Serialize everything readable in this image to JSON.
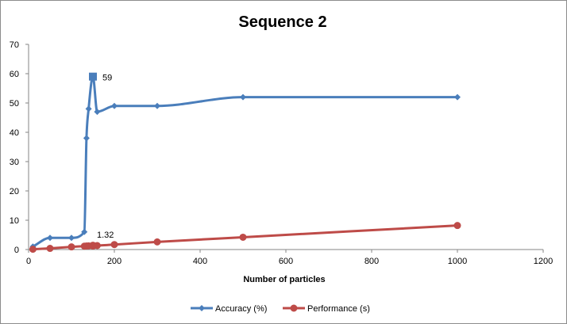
{
  "chart_data": {
    "type": "line",
    "title": "Sequence 2",
    "xlabel": "Number of particles",
    "ylabel": "",
    "xlim": [
      0,
      1200
    ],
    "ylim": [
      0,
      70
    ],
    "xticks": [
      0,
      200,
      400,
      600,
      800,
      1000,
      1200
    ],
    "yticks": [
      0,
      10,
      20,
      30,
      40,
      50,
      60,
      70
    ],
    "legend_position": "bottom",
    "smooth_lines": true,
    "grid": false,
    "series": [
      {
        "name": "Accuracy (%)",
        "color": "#4a7ebb",
        "marker": "diamond",
        "x": [
          10,
          50,
          100,
          130,
          135,
          140,
          150,
          160,
          200,
          300,
          500,
          1000
        ],
        "y": [
          1,
          4,
          4,
          6,
          38,
          48,
          59,
          47,
          49,
          49,
          52,
          52
        ],
        "highlight_index": 6,
        "highlight_marker": "square",
        "highlight_label": "59"
      },
      {
        "name": "Performance (s)",
        "color": "#be4b48",
        "marker": "circle",
        "x": [
          10,
          50,
          100,
          130,
          135,
          140,
          150,
          160,
          200,
          300,
          500,
          1000
        ],
        "y": [
          0.1,
          0.4,
          0.9,
          1.15,
          1.2,
          1.25,
          1.32,
          1.35,
          1.7,
          2.6,
          4.2,
          8.2
        ],
        "highlight_index": 6,
        "highlight_label": "1.32"
      }
    ]
  }
}
